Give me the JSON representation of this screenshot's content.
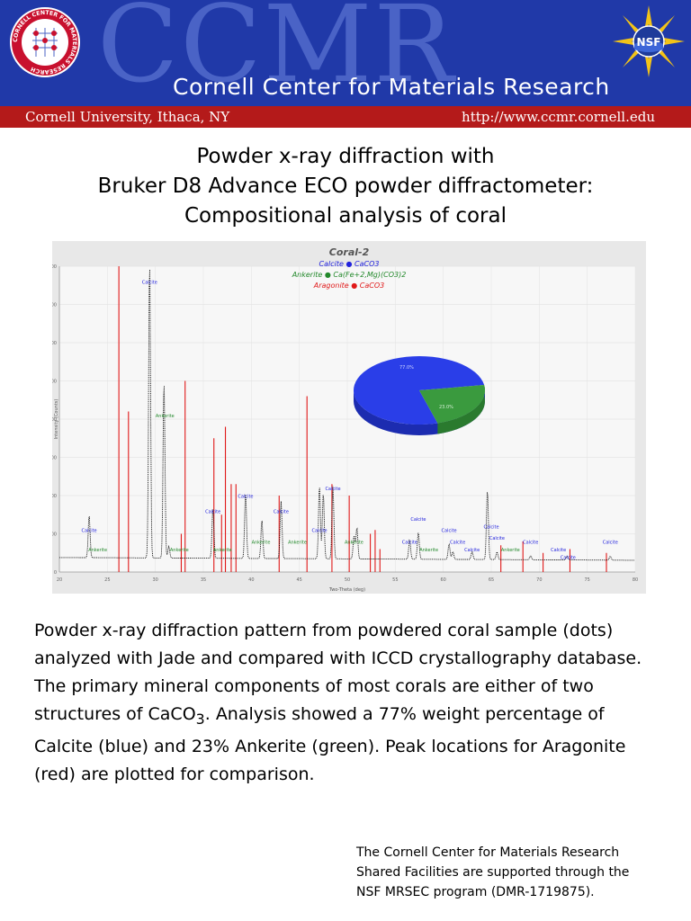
{
  "header": {
    "background_text": "CCMR",
    "banner_title": "Cornell Center for Materials Research",
    "left_text": "Cornell University, Ithaca, NY",
    "right_text": "http://www.ccmr.cornell.edu",
    "logo_left_text": "CORNELL CENTER FOR MATERIALS RESEARCH",
    "logo_right_text": "NSF",
    "colors": {
      "banner": "#2039a8",
      "strip": "#b41a1a"
    }
  },
  "title": {
    "line1": "Powder x-ray diffraction with",
    "line2": "Bruker D8 Advance ECO powder diffractometer:",
    "line3": "Compositional analysis of coral"
  },
  "chart_data": {
    "type": "line",
    "title": "Coral-2",
    "xlabel": "Two-Theta (deg)",
    "ylabel": "Intensity (Counts)",
    "xlim": [
      20,
      80
    ],
    "ylim": [
      0,
      8000
    ],
    "xticks": [
      20,
      25,
      30,
      35,
      40,
      45,
      50,
      55,
      60,
      65,
      70,
      75,
      80
    ],
    "yticks": [
      0,
      1000,
      2000,
      3000,
      4000,
      5000,
      6000,
      7000,
      8000
    ],
    "legend": [
      {
        "phase": "Calcite",
        "formula": "CaCO3",
        "color": "#2222dd"
      },
      {
        "phase": "Ankerite",
        "formula": "Ca(Fe+2,Mg)(CO3)2",
        "color": "#22882a"
      },
      {
        "phase": "Aragonite",
        "formula": "CaCO3",
        "color": "#e01818"
      }
    ],
    "pattern_peaks": [
      {
        "x": 23.1,
        "y": 1400
      },
      {
        "x": 29.4,
        "y": 8000
      },
      {
        "x": 30.9,
        "y": 4900
      },
      {
        "x": 31.4,
        "y": 600
      },
      {
        "x": 36.0,
        "y": 1600
      },
      {
        "x": 39.4,
        "y": 2000
      },
      {
        "x": 41.1,
        "y": 1300
      },
      {
        "x": 43.1,
        "y": 1800
      },
      {
        "x": 47.1,
        "y": 2200
      },
      {
        "x": 47.5,
        "y": 2000
      },
      {
        "x": 48.5,
        "y": 2200
      },
      {
        "x": 50.7,
        "y": 900
      },
      {
        "x": 51.0,
        "y": 1100
      },
      {
        "x": 56.5,
        "y": 800
      },
      {
        "x": 57.4,
        "y": 1000
      },
      {
        "x": 60.6,
        "y": 700
      },
      {
        "x": 61.0,
        "y": 500
      },
      {
        "x": 63.0,
        "y": 500
      },
      {
        "x": 64.6,
        "y": 2100
      },
      {
        "x": 65.6,
        "y": 500
      },
      {
        "x": 69.1,
        "y": 400
      },
      {
        "x": 72.9,
        "y": 400
      },
      {
        "x": 77.4,
        "y": 400
      }
    ],
    "aragonite_sticks": [
      {
        "x": 26.2,
        "y": 8000
      },
      {
        "x": 27.2,
        "y": 4200
      },
      {
        "x": 32.7,
        "y": 1000
      },
      {
        "x": 33.1,
        "y": 5000
      },
      {
        "x": 36.1,
        "y": 3500
      },
      {
        "x": 36.9,
        "y": 1500
      },
      {
        "x": 37.3,
        "y": 3800
      },
      {
        "x": 37.9,
        "y": 2300
      },
      {
        "x": 38.4,
        "y": 2300
      },
      {
        "x": 42.9,
        "y": 2000
      },
      {
        "x": 45.8,
        "y": 4600
      },
      {
        "x": 48.4,
        "y": 2300
      },
      {
        "x": 50.2,
        "y": 2000
      },
      {
        "x": 52.4,
        "y": 1000
      },
      {
        "x": 52.9,
        "y": 1100
      },
      {
        "x": 53.4,
        "y": 600
      },
      {
        "x": 66.0,
        "y": 700
      },
      {
        "x": 68.3,
        "y": 800
      },
      {
        "x": 70.4,
        "y": 500
      },
      {
        "x": 73.2,
        "y": 600
      },
      {
        "x": 77.0,
        "y": 500
      }
    ],
    "peak_labels": [
      {
        "text": "Calcite",
        "x": 23.1,
        "y": 1000,
        "phase": "calcite"
      },
      {
        "text": "Ankerite",
        "x": 24.0,
        "y": 500,
        "phase": "ankerite"
      },
      {
        "text": "Calcite",
        "x": 29.4,
        "y": 7500,
        "phase": "calcite"
      },
      {
        "text": "Ankerite",
        "x": 31.0,
        "y": 4000,
        "phase": "ankerite"
      },
      {
        "text": "Ankerite",
        "x": 32.5,
        "y": 500,
        "phase": "ankerite"
      },
      {
        "text": "Calcite",
        "x": 36.0,
        "y": 1500,
        "phase": "calcite"
      },
      {
        "text": "Ankerite",
        "x": 37.0,
        "y": 500,
        "phase": "ankerite"
      },
      {
        "text": "Calcite",
        "x": 39.4,
        "y": 1900,
        "phase": "calcite"
      },
      {
        "text": "Ankerite",
        "x": 41.0,
        "y": 700,
        "phase": "ankerite"
      },
      {
        "text": "Calcite",
        "x": 43.1,
        "y": 1500,
        "phase": "calcite"
      },
      {
        "text": "Ankerite",
        "x": 44.8,
        "y": 700,
        "phase": "ankerite"
      },
      {
        "text": "Calcite",
        "x": 47.1,
        "y": 1000,
        "phase": "calcite"
      },
      {
        "text": "Calcite",
        "x": 48.5,
        "y": 2100,
        "phase": "calcite"
      },
      {
        "text": "Ankerite",
        "x": 50.7,
        "y": 700,
        "phase": "ankerite"
      },
      {
        "text": "Calcite",
        "x": 56.5,
        "y": 700,
        "phase": "calcite"
      },
      {
        "text": "Calcite",
        "x": 57.4,
        "y": 1300,
        "phase": "calcite"
      },
      {
        "text": "Ankerite",
        "x": 58.5,
        "y": 500,
        "phase": "ankerite"
      },
      {
        "text": "Calcite",
        "x": 60.6,
        "y": 1000,
        "phase": "calcite"
      },
      {
        "text": "Calcite",
        "x": 61.5,
        "y": 700,
        "phase": "calcite"
      },
      {
        "text": "Calcite",
        "x": 63.0,
        "y": 500,
        "phase": "calcite"
      },
      {
        "text": "Calcite",
        "x": 65.0,
        "y": 1100,
        "phase": "calcite"
      },
      {
        "text": "Calcite",
        "x": 65.6,
        "y": 800,
        "phase": "calcite"
      },
      {
        "text": "Ankerite",
        "x": 67.0,
        "y": 500,
        "phase": "ankerite"
      },
      {
        "text": "Calcite",
        "x": 69.1,
        "y": 700,
        "phase": "calcite"
      },
      {
        "text": "Calcite",
        "x": 72.0,
        "y": 500,
        "phase": "calcite"
      },
      {
        "text": "Calcite",
        "x": 73.0,
        "y": 300,
        "phase": "calcite"
      },
      {
        "text": "Calcite",
        "x": 77.4,
        "y": 700,
        "phase": "calcite"
      }
    ],
    "pie": {
      "slices": [
        {
          "label": "Calcite",
          "percent": 77,
          "color": "#2a3ee8",
          "text": "77.0%"
        },
        {
          "label": "Ankerite",
          "percent": 23,
          "color": "#3a9a3e",
          "text": "23.0%"
        }
      ]
    }
  },
  "description": {
    "part1": "Powder x-ray diffraction pattern from powdered coral sample (dots) analyzed with Jade and compared with ICCD crystallography database. The primary mineral components of most corals are either of two structures of CaCO",
    "sub": "3",
    "part2": ". Analysis showed a 77% weight percentage of Calcite (blue) and 23% Ankerite (green). Peak locations for Aragonite (red) are plotted for comparison."
  },
  "footnote": {
    "line1": "The Cornell Center for Materials Research",
    "line2": "Shared Facilities are supported through the",
    "line3": "NSF MRSEC program (DMR-1719875)."
  }
}
